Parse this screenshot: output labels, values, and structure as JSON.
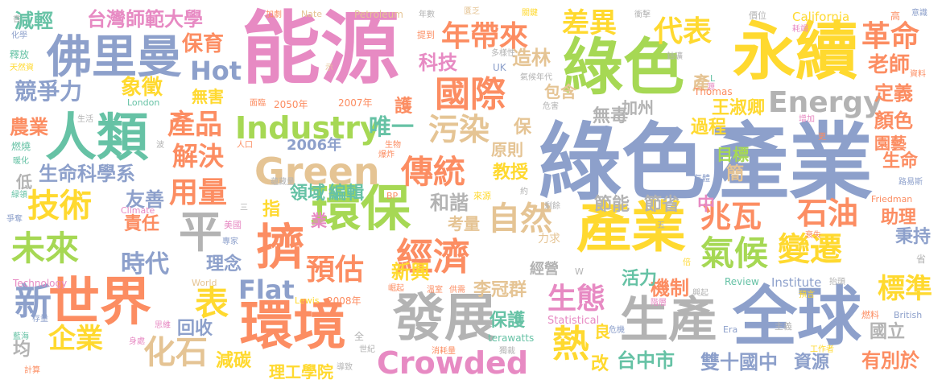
{
  "palette": {
    "teal": "#66c2a5",
    "orange": "#fc8d62",
    "blue": "#8da0cb",
    "pink": "#e78ac3",
    "green": "#a6d854",
    "yellow": "#ffd92f",
    "tan": "#e5c494",
    "gray": "#b3b3b3"
  },
  "words": {
    "w001": "綠色產業",
    "w002": "能源",
    "w003": "永續",
    "w004": "綠色",
    "w005": "全球",
    "w006": "人類",
    "w007": "世界",
    "w008": "佛里曼",
    "w009": "環保",
    "w010": "環境",
    "w011": "發展",
    "w012": "生產",
    "w013": "產業",
    "w014": "擠",
    "w015": "Green",
    "w016": "Crowded",
    "w017": "Industry",
    "w018": "Energy",
    "w019": "國際",
    "w020": "經濟",
    "w021": "傳統",
    "w022": "自然",
    "w023": "氣候",
    "w024": "變遷",
    "w025": "化石",
    "w026": "企業",
    "w027": "技術",
    "w028": "未來",
    "w029": "新",
    "w030": "年帶來",
    "w031": "差異",
    "w032": "代表",
    "w033": "革命",
    "w034": "兆瓦",
    "w035": "石油",
    "w036": "生態",
    "w037": "熱",
    "w038": "污染",
    "w039": "平",
    "w040": "用量",
    "w041": "產品",
    "w042": "解決",
    "w043": "預估",
    "w044": "時代",
    "w045": "Hot",
    "w046": "Flat",
    "w047": "標準",
    "w048": "減輕",
    "w049": "台灣師範大學",
    "w050": "保育",
    "w051": "競爭力",
    "w052": "象徵",
    "w053": "無害",
    "w054": "科技",
    "w055": "造林",
    "w056": "老師",
    "w057": "定義",
    "w058": "顏色",
    "w059": "王淑卿",
    "w060": "唯一",
    "w061": "教授",
    "w062": "無毒",
    "w063": "加州",
    "w064": "過程",
    "w065": "目標",
    "w066": "生命科學系",
    "w067": "友善",
    "w068": "領域",
    "w069": "編輯",
    "w070": "和諧",
    "w071": "節能",
    "w072": "節省",
    "w073": "責任",
    "w074": "考量",
    "w075": "新興",
    "w076": "理念",
    "w077": "機制",
    "w078": "活力",
    "w079": "李冠群",
    "w080": "保護",
    "w081": "台中市",
    "w082": "雙十國中",
    "w083": "資源",
    "w084": "有別於",
    "w085": "國立",
    "w086": "減碳",
    "w087": "理工學院",
    "w088": "回收",
    "w089": "生命",
    "w090": "園藝",
    "w091": "助理",
    "w092": "秉持",
    "w093": "農業",
    "w094": "2006年",
    "w095": "包含",
    "w096": "原則",
    "w097": "經營",
    "w098": "表",
    "w099": "護",
    "w100": "保",
    "w101": "簡",
    "w102": "產",
    "w103": "中",
    "w104": "指",
    "w105": "業",
    "w106": "良",
    "w107": "改",
    "w108": "均",
    "w109": "低",
    "w110": "California",
    "w111": "Institute",
    "w112": "Review",
    "w113": "Technology",
    "w114": "Thomas",
    "w115": "London",
    "w116": "World",
    "w117": "terawatts",
    "w118": "Statistical",
    "w119": "Lewis",
    "w120": "2008年",
    "w121": "2050年",
    "w122": "2007年",
    "w123": "Petroleum",
    "w124": "Nate",
    "w125": "BP",
    "w126": "Climate",
    "w127": "Friedman",
    "w128": "British",
    "w129": "Era",
    "w130": "UK",
    "w131": "L",
    "w132": "W",
    "w133": "美國",
    "w134": "專家",
    "w135": "來源",
    "w136": "剩餘",
    "w137": "倍",
    "w138": "衰失",
    "w139": "抬頭",
    "w140": "預言",
    "w141": "燃料",
    "w142": "主義",
    "w143": "工作者",
    "w144": "興起",
    "w145": "階層",
    "w146": "危機",
    "w147": "溫室",
    "w148": "供需",
    "w149": "崛起",
    "w150": "消耗量",
    "w151": "獨裁",
    "w152": "世紀",
    "w153": "導致",
    "w154": "全",
    "w155": "思維",
    "w156": "身處",
    "w157": "藍海",
    "w158": "存量",
    "w159": "計算",
    "w160": "爭奪",
    "w161": "緑領",
    "w162": "暖化",
    "w163": "燃燒",
    "w164": "釋放",
    "w165": "化學",
    "w166": "書",
    "w167": "天然資",
    "w168": "加劇",
    "w169": "年數",
    "w170": "匱乏",
    "w171": "關鍵",
    "w172": "衝擊",
    "w173": "價位",
    "w174": "高",
    "w175": "意識",
    "w176": "耗竭",
    "w177": "資料",
    "w178": "鈾礦",
    "w179": "提到",
    "w180": "多樣性",
    "w181": "氣候年代",
    "w182": "危害",
    "w183": "生活",
    "w184": "波",
    "w185": "人口",
    "w186": "面臨",
    "w187": "生物",
    "w188": "爆炸",
    "w189": "蘊藏量",
    "w190": "三",
    "w191": "約",
    "w192": "氣體",
    "w193": "路易斯",
    "w194": "增加",
    "w195": "更",
    "w196": "省",
    "w197": "五",
    "w198": "力求",
    "w199": "源",
    "w200": "示"
  }
}
